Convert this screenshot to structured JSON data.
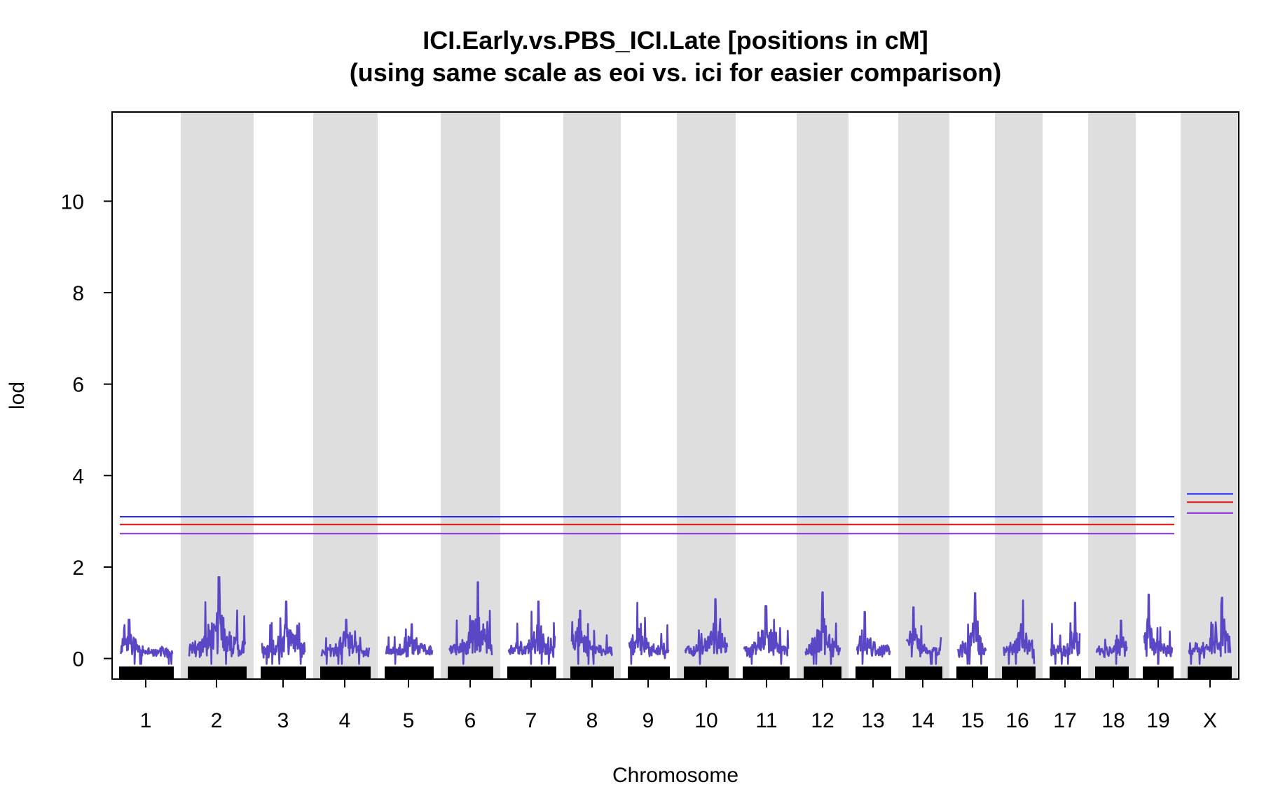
{
  "chart_data": {
    "type": "line",
    "title_line1": "ICI.Early.vs.PBS_ICI.Late [positions in cM]",
    "title_line2": "(using same scale as eoi vs. ici for easier comparison)",
    "xlabel": "Chromosome",
    "ylabel": "lod",
    "ylim": [
      -0.45,
      11.95
    ],
    "yticks": [
      0,
      2,
      4,
      6,
      8,
      10
    ],
    "chromosomes": [
      "1",
      "2",
      "3",
      "4",
      "5",
      "6",
      "7",
      "8",
      "9",
      "10",
      "11",
      "12",
      "13",
      "14",
      "15",
      "16",
      "17",
      "18",
      "19",
      "X"
    ],
    "series": [
      {
        "name": "lod",
        "color": "#5a47c6",
        "peaks": [
          0.85,
          1.78,
          1.25,
          0.85,
          0.75,
          1.67,
          1.25,
          1.05,
          1.22,
          1.3,
          1.15,
          1.45,
          1.02,
          1.12,
          1.43,
          1.27,
          1.22,
          0.83,
          1.4,
          1.33
        ]
      }
    ],
    "thresholds": {
      "autosome": [
        {
          "color": "#1a1aff",
          "value": 3.1
        },
        {
          "color": "#e81010",
          "value": 2.93
        },
        {
          "color": "#8a2be2",
          "value": 2.73
        }
      ],
      "X": [
        {
          "color": "#1a1aff",
          "value": 3.6
        },
        {
          "color": "#e81010",
          "value": 3.42
        },
        {
          "color": "#8a2be2",
          "value": 3.18
        }
      ]
    },
    "band_color": "#dedede",
    "grid": false
  }
}
